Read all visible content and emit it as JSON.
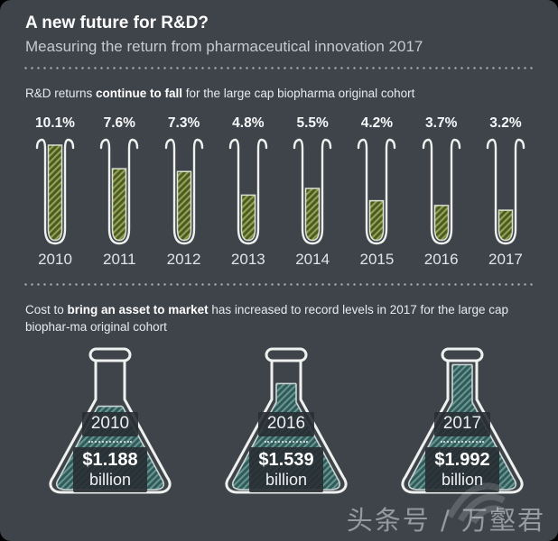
{
  "header": {
    "title": "A new future for R&D?",
    "subtitle": "Measuring the return from pharmaceutical innovation 2017"
  },
  "section1": {
    "prefix": "R&D returns ",
    "bold": "continue to fall",
    "suffix": " for the large cap biopharma original cohort"
  },
  "section2": {
    "prefix": "Cost to ",
    "bold": "bring an asset to market",
    "suffix": " has increased to record levels in 2017 for the large cap biophar-ma original cohort"
  },
  "chart_data": [
    {
      "type": "bar",
      "variant": "test-tubes",
      "title": "R&D returns continue to fall for the large cap biopharma original cohort",
      "categories": [
        "2010",
        "2011",
        "2012",
        "2013",
        "2014",
        "2015",
        "2016",
        "2017"
      ],
      "values": [
        10.1,
        7.6,
        7.3,
        4.8,
        5.5,
        4.2,
        3.7,
        3.2
      ],
      "value_labels": [
        "10.1%",
        "7.6%",
        "7.3%",
        "4.8%",
        "5.5%",
        "4.2%",
        "3.7%",
        "3.2%"
      ],
      "unit": "percent",
      "max_value": 10.1,
      "fill_color": "#4c5a22",
      "stripe_color": "#94a455",
      "outline_color": "#eff1ee",
      "fill_edge_color": "#dde1d2"
    },
    {
      "type": "bar",
      "variant": "flasks",
      "title": "Cost to bring an asset to market has increased to record levels in 2017 for the large cap biopharma original cohort",
      "categories": [
        "2010",
        "2016",
        "2017"
      ],
      "values": [
        1.188,
        1.539,
        1.992
      ],
      "value_labels": [
        "$1.188",
        "$1.539",
        "$1.992"
      ],
      "unit_label": "billion",
      "unit": "USD billions",
      "fill_levels": [
        0.66,
        0.84,
        0.99
      ],
      "fill_color": "#2e5a58",
      "stripe_color": "#6a9492",
      "outline_color": "#eff1ee",
      "fill_edge_color": "#c9d6d5"
    }
  ],
  "watermark": {
    "text": "头条号 / 万壑君"
  },
  "colors": {
    "background": "#3f444b",
    "dot_divider": "#a9aeb4"
  }
}
